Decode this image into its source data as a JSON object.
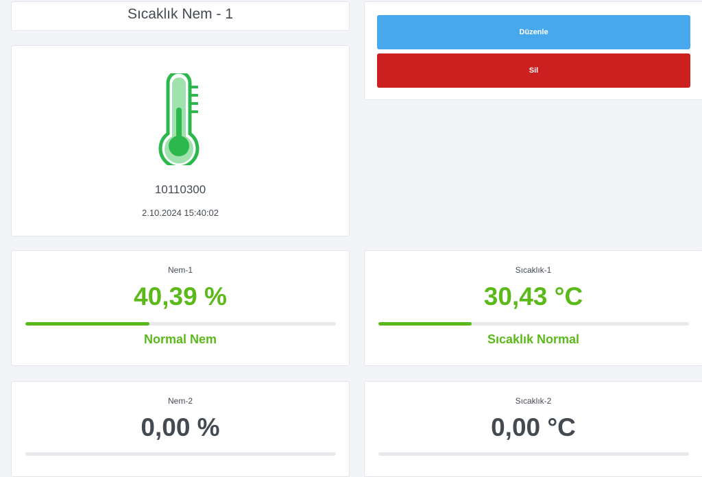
{
  "header": {
    "title": "Sıcaklık Nem - 1"
  },
  "actions": {
    "edit_label": "Düzenle",
    "delete_label": "Sil"
  },
  "device": {
    "icon": "thermometer-icon",
    "id": "10110300",
    "timestamp": "2.10.2024 15:40:02",
    "icon_color": "#2db84d"
  },
  "colors": {
    "ok": "#5cb91a",
    "edit_button": "#47a8ee",
    "delete_button": "#cc1f1f"
  },
  "sensors": {
    "nem1": {
      "label": "Nem-1",
      "value": "40,39 %",
      "status": "Normal Nem",
      "progress": 0.4
    },
    "sicaklik1": {
      "label": "Sıcaklık-1",
      "value": "30,43 °C",
      "status": "Sıcaklık Normal",
      "progress": 0.3
    },
    "nem2": {
      "label": "Nem-2",
      "value": "0,00 %",
      "progress": 0
    },
    "sicaklik2": {
      "label": "Sıcaklık-2",
      "value": "0,00 °C",
      "progress": 0
    }
  }
}
